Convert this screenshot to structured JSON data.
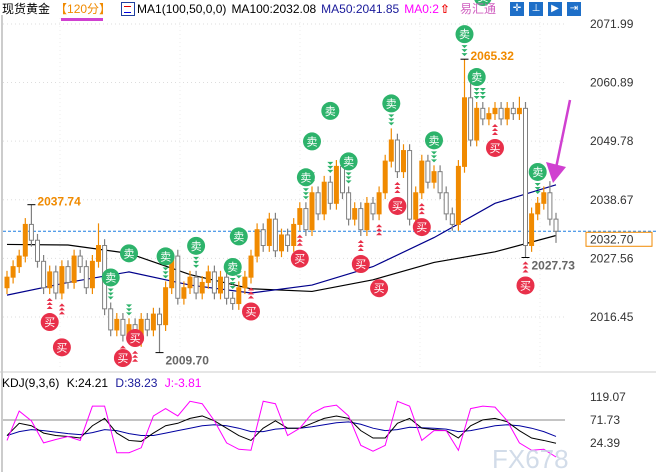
{
  "header": {
    "symbol": "现货黄金",
    "period": "【120分】",
    "indicator": "MA1(100,50,0,0)",
    "ma100": "MA100:2032.08",
    "ma50": "MA50:2041.85",
    "ma0": "MA0:2",
    "brand": "易汇通",
    "toolbar_icons": [
      "crosshair-icon",
      "range-icon",
      "play-icon",
      "exit-icon"
    ]
  },
  "kdj": {
    "title": "KDJ(9,3,6)",
    "k_label": "K:24.21",
    "d_label": "D:38.23",
    "j_label": "J:-3.81"
  },
  "watermark": "FX678",
  "colors": {
    "up": "#f08a00",
    "down": "#808080",
    "ma100": "#000000",
    "ma50": "#00008b",
    "k": "#000000",
    "d": "#0000a0",
    "j": "#ff00ff",
    "sell": "#2db36b",
    "buy": "#e8304a",
    "current": "#1e7fe0",
    "arrow": "#d040d0"
  },
  "chart_data": {
    "type": "candlestick",
    "price_axis": {
      "ticks": [
        "2071.99",
        "2060.89",
        "2049.78",
        "2038.67",
        "2027.56",
        "2016.45"
      ],
      "range": [
        2016.45,
        2071.99
      ]
    },
    "current_price": "2032.70",
    "annotations": [
      {
        "label": "2037.74",
        "candle": 4,
        "kind": "high"
      },
      {
        "label": "2009.70",
        "candle": 25,
        "kind": "low"
      },
      {
        "label": "2065.32",
        "candle": 75,
        "kind": "high"
      },
      {
        "label": "2027.73",
        "candle": 85,
        "kind": "low"
      }
    ],
    "ohlc": [
      [
        2022,
        2025.2,
        2020.8,
        2024
      ],
      [
        2024,
        2027.2,
        2022.8,
        2026
      ],
      [
        2026,
        2029.2,
        2024.8,
        2028
      ],
      [
        2028,
        2035.2,
        2026.8,
        2034
      ],
      [
        2034,
        2037.74,
        2029.8,
        2031
      ],
      [
        2031,
        2032.2,
        2025.8,
        2027
      ],
      [
        2027,
        2028.2,
        2020.8,
        2022
      ],
      [
        2022,
        2026.2,
        2020.8,
        2025
      ],
      [
        2025,
        2026.2,
        2019.8,
        2021
      ],
      [
        2021,
        2027.2,
        2019.8,
        2026
      ],
      [
        2026,
        2027.2,
        2021.8,
        2023
      ],
      [
        2023,
        2029.2,
        2021.8,
        2028
      ],
      [
        2028,
        2029.2,
        2024.8,
        2026
      ],
      [
        2026,
        2027.2,
        2020.8,
        2022
      ],
      [
        2022,
        2028.2,
        2020.8,
        2027
      ],
      [
        2027,
        2034.2,
        2025.8,
        2030
      ],
      [
        2030,
        2031.2,
        2016.8,
        2018
      ],
      [
        2018,
        2019.2,
        2012.8,
        2014
      ],
      [
        2014,
        2017.2,
        2012.8,
        2016
      ],
      [
        2016,
        2017.2,
        2011.8,
        2013
      ],
      [
        2013,
        2016.2,
        2011.8,
        2015
      ],
      [
        2015,
        2016.2,
        2010.8,
        2012
      ],
      [
        2012,
        2017.2,
        2010.8,
        2016
      ],
      [
        2016,
        2017.2,
        2012.8,
        2014
      ],
      [
        2014,
        2018.2,
        2012.8,
        2017
      ],
      [
        2017,
        2018.2,
        2009.7,
        2015
      ],
      [
        2015,
        2023.2,
        2013.8,
        2022
      ],
      [
        2022,
        2029.2,
        2020.8,
        2028
      ],
      [
        2028,
        2029.2,
        2018.8,
        2020
      ],
      [
        2020,
        2023.2,
        2018.8,
        2022
      ],
      [
        2022,
        2025.2,
        2020.8,
        2024
      ],
      [
        2024,
        2025.2,
        2019.8,
        2021
      ],
      [
        2021,
        2024.2,
        2019.8,
        2023
      ],
      [
        2023,
        2026.2,
        2021.8,
        2025
      ],
      [
        2025,
        2026.2,
        2019.8,
        2021
      ],
      [
        2021,
        2025.2,
        2019.8,
        2024
      ],
      [
        2024,
        2025.2,
        2018.8,
        2020
      ],
      [
        2020,
        2021.2,
        2017.8,
        2019
      ],
      [
        2019,
        2023.2,
        2017.8,
        2022
      ],
      [
        2022,
        2025.2,
        2020.8,
        2024
      ],
      [
        2024,
        2029.2,
        2022.8,
        2028
      ],
      [
        2028,
        2034.2,
        2026.8,
        2033
      ],
      [
        2033,
        2034.2,
        2028.8,
        2030
      ],
      [
        2030,
        2036.2,
        2028.8,
        2035
      ],
      [
        2035,
        2036.2,
        2027.8,
        2029
      ],
      [
        2029,
        2033.2,
        2027.8,
        2032
      ],
      [
        2032,
        2033.2,
        2028.8,
        2030
      ],
      [
        2030,
        2035.2,
        2028.8,
        2034
      ],
      [
        2034,
        2038.2,
        2032.8,
        2037
      ],
      [
        2037,
        2038.2,
        2031.8,
        2033
      ],
      [
        2033,
        2041.2,
        2031.8,
        2040
      ],
      [
        2040,
        2041.2,
        2034.8,
        2036
      ],
      [
        2036,
        2043.2,
        2034.8,
        2042
      ],
      [
        2042,
        2043.2,
        2036.8,
        2038
      ],
      [
        2038,
        2046.2,
        2036.8,
        2045
      ],
      [
        2045,
        2046.2,
        2038.8,
        2040
      ],
      [
        2040,
        2041.2,
        2033.8,
        2035
      ],
      [
        2035,
        2038.2,
        2033.8,
        2037
      ],
      [
        2037,
        2038.2,
        2031.8,
        2033
      ],
      [
        2033,
        2039.2,
        2031.8,
        2038
      ],
      [
        2038,
        2039.2,
        2034.8,
        2036
      ],
      [
        2036,
        2041.2,
        2034.8,
        2040
      ],
      [
        2040,
        2047.2,
        2038.8,
        2046
      ],
      [
        2046,
        2052.2,
        2044.8,
        2050
      ],
      [
        2050,
        2051.2,
        2042.8,
        2044
      ],
      [
        2044,
        2049.2,
        2042.8,
        2048
      ],
      [
        2048,
        2049.2,
        2033.8,
        2035
      ],
      [
        2035,
        2041.2,
        2033.8,
        2040
      ],
      [
        2040,
        2047.2,
        2038.8,
        2046
      ],
      [
        2046,
        2047.2,
        2040.8,
        2042
      ],
      [
        2042,
        2045.2,
        2040.8,
        2044
      ],
      [
        2044,
        2045.2,
        2038.8,
        2040
      ],
      [
        2040,
        2041.2,
        2034.8,
        2036
      ],
      [
        2036,
        2037.2,
        2032.8,
        2034
      ],
      [
        2034,
        2046.2,
        2032.8,
        2045
      ],
      [
        2045,
        2065.32,
        2043.8,
        2058
      ],
      [
        2058,
        2063.2,
        2048.8,
        2050
      ],
      [
        2050,
        2057.2,
        2048.8,
        2056
      ],
      [
        2056,
        2057.2,
        2052.8,
        2054
      ],
      [
        2054,
        2056.2,
        2052.8,
        2055
      ],
      [
        2055,
        2057.2,
        2053.8,
        2056
      ],
      [
        2056,
        2057.2,
        2052.8,
        2054
      ],
      [
        2054,
        2057.2,
        2052.8,
        2056
      ],
      [
        2056,
        2057.2,
        2053.8,
        2055
      ],
      [
        2055,
        2058.2,
        2053.8,
        2056
      ],
      [
        2056,
        2057.2,
        2027.73,
        2030
      ],
      [
        2030,
        2037.2,
        2028.8,
        2036
      ],
      [
        2036,
        2039.2,
        2034.8,
        2038
      ],
      [
        2038,
        2041.2,
        2036.8,
        2040
      ],
      [
        2040,
        2042.2,
        2033.8,
        2035
      ],
      [
        2035,
        2036.2,
        2030.5,
        2032.7
      ]
    ],
    "ma100_every10": [
      2030.2,
      2030.1,
      2028.5,
      2024.5,
      2021.8,
      2021.3,
      2023.5,
      2026.8,
      2028.8,
      2031.9
    ],
    "ma50_every10": [
      2020.6,
      2023,
      2025,
      2022.5,
      2021,
      2022.5,
      2026,
      2031.5,
      2038,
      2041.5
    ],
    "signals": {
      "sell_label": "卖",
      "buy_label": "买",
      "sell": [
        17,
        20,
        26,
        31,
        37,
        38,
        49,
        50,
        53,
        56,
        63,
        70,
        75,
        77,
        78,
        87
      ],
      "buy": [
        7,
        9,
        19,
        21,
        40,
        48,
        58,
        61,
        64,
        68,
        80,
        85
      ]
    },
    "kdj_panel": {
      "ticks": [
        "119.07",
        "71.73",
        "24.39"
      ],
      "reference_line": 71.73,
      "every2": {
        "J": [
          30,
          90,
          70,
          25,
          32,
          38,
          30,
          100,
          100,
          5,
          5,
          15,
          80,
          95,
          80,
          110,
          105,
          70,
          25,
          12,
          10,
          110,
          105,
          40,
          55,
          85,
          98,
          102,
          80,
          20,
          8,
          20,
          110,
          100,
          30,
          50,
          50,
          10,
          95,
          100,
          98,
          70,
          25,
          10,
          12,
          -3.81
        ],
        "K": [
          40,
          65,
          60,
          45,
          40,
          38,
          35,
          60,
          75,
          45,
          30,
          28,
          45,
          60,
          65,
          75,
          80,
          70,
          55,
          40,
          30,
          55,
          70,
          55,
          55,
          65,
          75,
          80,
          75,
          50,
          35,
          35,
          65,
          75,
          55,
          52,
          50,
          35,
          60,
          72,
          75,
          68,
          50,
          35,
          30,
          24.21
        ],
        "D": [
          40,
          48,
          52,
          50,
          47,
          44,
          42,
          46,
          52,
          50,
          44,
          40,
          40,
          45,
          50,
          55,
          60,
          62,
          60,
          55,
          48,
          48,
          53,
          55,
          55,
          58,
          62,
          66,
          68,
          63,
          55,
          50,
          52,
          57,
          56,
          55,
          53,
          48,
          50,
          55,
          60,
          62,
          60,
          55,
          48,
          38.23
        ]
      }
    }
  }
}
